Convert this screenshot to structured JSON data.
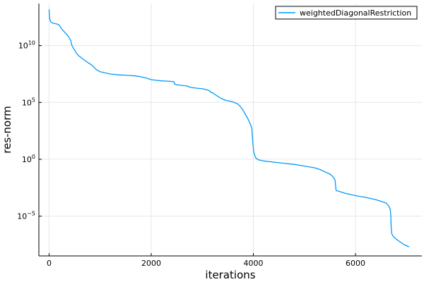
{
  "chart_data": {
    "type": "line",
    "title": "",
    "xlabel": "iterations",
    "ylabel": "res-norm",
    "yscale": "log10",
    "grid": true,
    "legend_position": "top-right",
    "xlim": [
      -200,
      7300
    ],
    "ylim_log10": [
      -8.5,
      13.7
    ],
    "x_ticks": [
      0,
      2000,
      4000,
      6000
    ],
    "x_tick_labels": [
      "0",
      "2000",
      "4000",
      "6000"
    ],
    "y_ticks_log10": [
      -5,
      0,
      5,
      10
    ],
    "y_tick_labels": [
      {
        "base": "10",
        "exp": "−5"
      },
      {
        "base": "10",
        "exp": "0"
      },
      {
        "base": "10",
        "exp": "5"
      },
      {
        "base": "10",
        "exp": "10"
      }
    ],
    "series": [
      {
        "name": "weightedDiagonalRestriction",
        "color": "#009af9",
        "x": [
          0,
          5,
          15,
          30,
          60,
          100,
          150,
          200,
          240,
          280,
          320,
          380,
          430,
          440,
          460,
          500,
          540,
          580,
          640,
          700,
          760,
          800,
          840,
          880,
          920,
          960,
          1000,
          1100,
          1200,
          1300,
          1400,
          1500,
          1600,
          1700,
          1800,
          1900,
          2000,
          2100,
          2200,
          2300,
          2400,
          2450,
          2460,
          2500,
          2600,
          2700,
          2750,
          2800,
          2900,
          3000,
          3100,
          3150,
          3160,
          3200,
          3250,
          3300,
          3350,
          3400,
          3450,
          3500,
          3600,
          3700,
          3750,
          3800,
          3850,
          3900,
          3950,
          3970,
          3980,
          3990,
          4000,
          4010,
          4030,
          4050,
          4100,
          4200,
          4400,
          4600,
          4800,
          5000,
          5200,
          5300,
          5400,
          5500,
          5550,
          5600,
          5610,
          5620,
          5700,
          5800,
          6000,
          6200,
          6400,
          6600,
          6650,
          6680,
          6690,
          6700,
          6710,
          6750,
          6850,
          6950,
          7050
        ],
        "values_log10": [
          13.2,
          12.6,
          12.3,
          12.1,
          12.0,
          11.95,
          11.9,
          11.8,
          11.5,
          11.3,
          11.1,
          10.8,
          10.4,
          10.1,
          9.9,
          9.6,
          9.3,
          9.1,
          8.9,
          8.7,
          8.5,
          8.4,
          8.25,
          8.1,
          7.9,
          7.8,
          7.7,
          7.6,
          7.5,
          7.45,
          7.42,
          7.4,
          7.37,
          7.33,
          7.25,
          7.15,
          7.0,
          6.95,
          6.9,
          6.88,
          6.85,
          6.8,
          6.6,
          6.55,
          6.5,
          6.45,
          6.35,
          6.3,
          6.25,
          6.2,
          6.1,
          6.0,
          5.9,
          5.85,
          5.7,
          5.55,
          5.4,
          5.3,
          5.2,
          5.15,
          5.05,
          4.85,
          4.6,
          4.3,
          3.9,
          3.5,
          3.0,
          2.7,
          2.0,
          1.4,
          1.0,
          0.6,
          0.3,
          0.1,
          -0.05,
          -0.15,
          -0.25,
          -0.35,
          -0.45,
          -0.6,
          -0.75,
          -0.9,
          -1.1,
          -1.3,
          -1.5,
          -1.8,
          -2.3,
          -2.75,
          -2.85,
          -3.0,
          -3.2,
          -3.35,
          -3.55,
          -3.85,
          -4.1,
          -4.4,
          -4.8,
          -6.0,
          -6.55,
          -6.85,
          -7.2,
          -7.5,
          -7.7
        ]
      }
    ]
  }
}
